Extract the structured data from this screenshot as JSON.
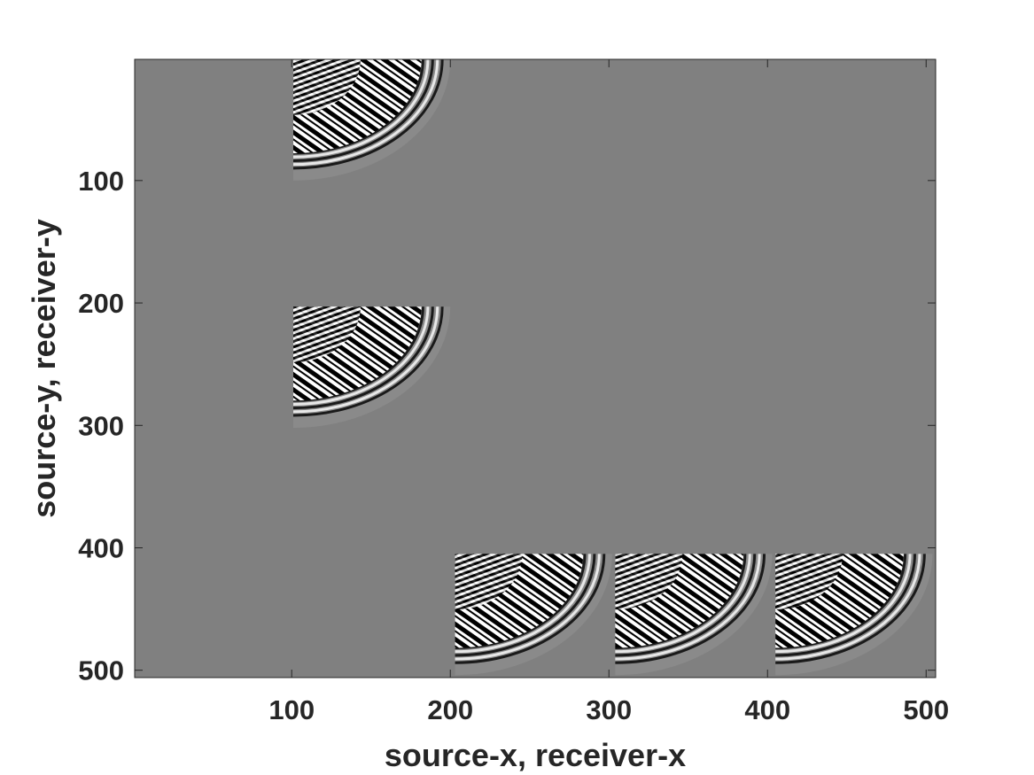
{
  "chart_data": {
    "type": "heatmap",
    "title": "",
    "xlabel": "source-x, receiver-x",
    "ylabel": "source-y, receiver-y",
    "xlim": [
      1,
      506
    ],
    "ylim": [
      1,
      506
    ],
    "y_axis_direction": "reversed",
    "colormap": "gray",
    "background_value_color": "#808080",
    "grid": false,
    "x_ticks": [
      100,
      200,
      300,
      400,
      500
    ],
    "y_ticks": [
      100,
      200,
      300,
      400,
      500
    ],
    "panels": [
      {
        "x": [
          101,
          202
        ],
        "y": [
          1,
          102
        ]
      },
      {
        "x": [
          101,
          202
        ],
        "y": [
          203,
          304
        ]
      },
      {
        "x": [
          203,
          304
        ],
        "y": [
          405,
          506
        ]
      },
      {
        "x": [
          304,
          405
        ],
        "y": [
          405,
          506
        ]
      },
      {
        "x": [
          405,
          506
        ],
        "y": [
          405,
          506
        ]
      }
    ]
  }
}
